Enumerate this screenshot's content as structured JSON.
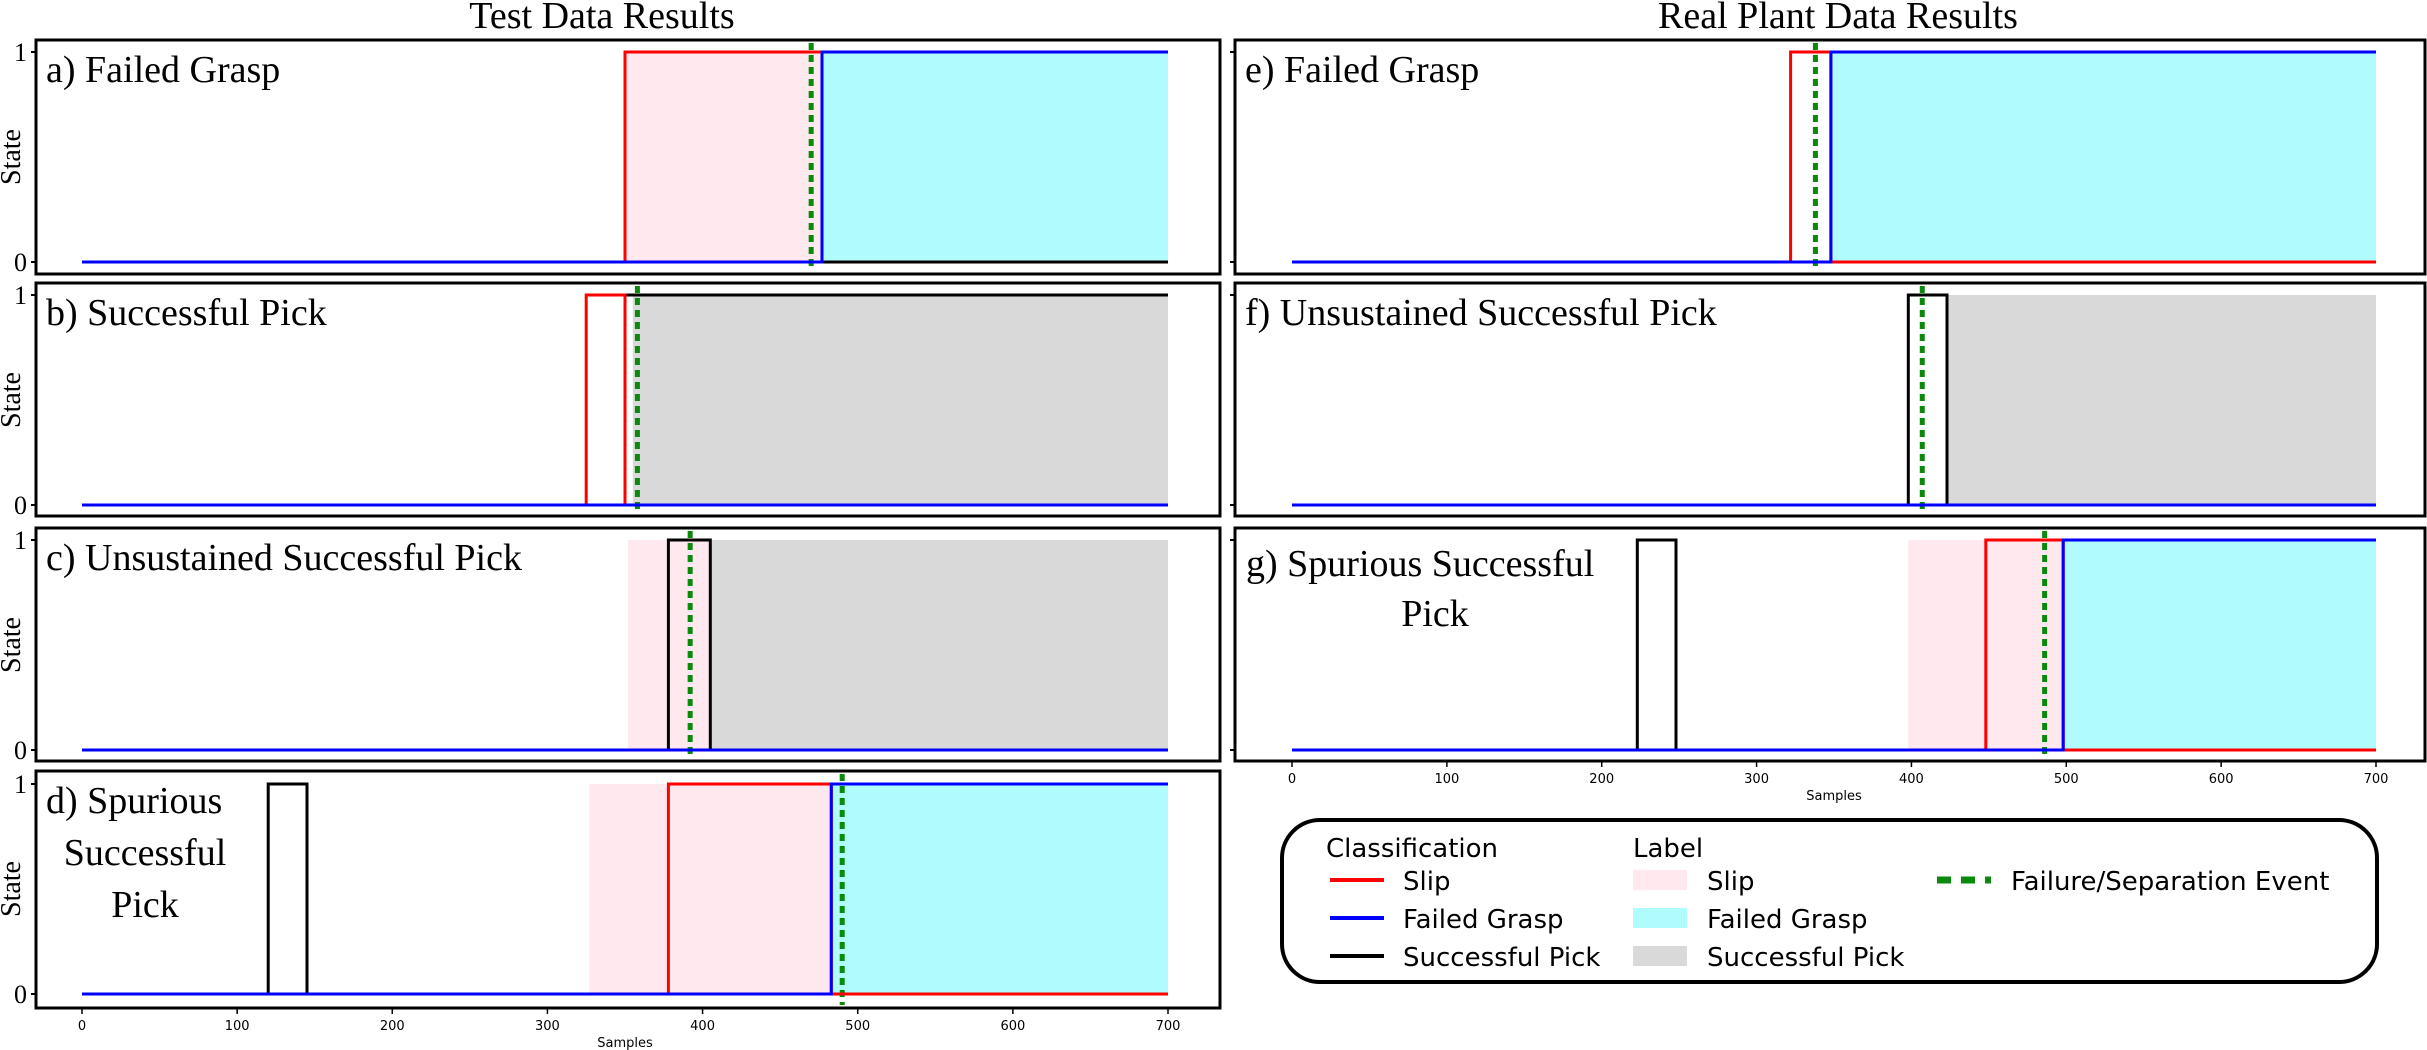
{
  "column_titles": [
    "Test Data Results",
    "Real Plant Data Results"
  ],
  "colors": {
    "slip_line": "#ff0000",
    "failed_line": "#0000ff",
    "success_line": "#000000",
    "slip_fill": "#ffe8ee",
    "failed_fill": "#b0fcfc",
    "success_fill": "#d9d9d9",
    "event": "#0a8a0a"
  },
  "legend": {
    "classification_title": "Classification",
    "label_title": "Label",
    "classification_items": [
      "Slip",
      "Failed Grasp",
      "Successful Pick"
    ],
    "label_items": [
      "Slip",
      "Failed Grasp",
      "Successful Pick"
    ],
    "event_item": "Failure/Separation Event"
  },
  "chart_data": [
    {
      "type": "line",
      "panel": "a",
      "label_lines": [
        "a) Failed Grasp"
      ],
      "ylabel": "State",
      "yticks": [
        0,
        1
      ],
      "xlim": [
        0,
        700
      ],
      "slip": [
        [
          0,
          0
        ],
        [
          350,
          0
        ],
        [
          350,
          1
        ],
        [
          700,
          1
        ]
      ],
      "failed": [
        [
          0,
          0
        ],
        [
          477,
          0
        ],
        [
          477,
          1
        ],
        [
          700,
          1
        ]
      ],
      "success": [
        [
          0,
          0
        ],
        [
          700,
          0
        ]
      ],
      "regions": [
        {
          "class": "slip",
          "from": 350,
          "to": 477
        },
        {
          "class": "failed",
          "from": 477,
          "to": 700
        }
      ],
      "event": 470
    },
    {
      "type": "line",
      "panel": "b",
      "label_lines": [
        "b) Successful Pick"
      ],
      "ylabel": "State",
      "yticks": [
        0,
        1
      ],
      "xlim": [
        0,
        700
      ],
      "slip": [
        [
          0,
          0
        ],
        [
          325,
          0
        ],
        [
          325,
          1
        ],
        [
          350,
          1
        ],
        [
          350,
          0
        ],
        [
          700,
          0
        ]
      ],
      "failed": [
        [
          0,
          0
        ],
        [
          700,
          0
        ]
      ],
      "success": [
        [
          0,
          0
        ],
        [
          350,
          0
        ],
        [
          350,
          1
        ],
        [
          700,
          1
        ]
      ],
      "regions": [
        {
          "class": "success",
          "from": 355,
          "to": 700
        }
      ],
      "event": 358
    },
    {
      "type": "line",
      "panel": "c",
      "label_lines": [
        "c) Unsustained Successful Pick"
      ],
      "ylabel": "State",
      "yticks": [
        0,
        1
      ],
      "xlim": [
        0,
        700
      ],
      "slip": [
        [
          0,
          0
        ],
        [
          700,
          0
        ]
      ],
      "failed": [
        [
          0,
          0
        ],
        [
          700,
          0
        ]
      ],
      "success": [
        [
          0,
          0
        ],
        [
          378,
          0
        ],
        [
          378,
          1
        ],
        [
          405,
          1
        ],
        [
          405,
          0
        ],
        [
          700,
          0
        ]
      ],
      "regions": [
        {
          "class": "slip",
          "from": 352,
          "to": 405
        },
        {
          "class": "success",
          "from": 405,
          "to": 700
        }
      ],
      "event": 392
    },
    {
      "type": "line",
      "panel": "d",
      "label_lines": [
        "d) Spurious",
        "Successful",
        "Pick"
      ],
      "ylabel": "State",
      "yticks": [
        0,
        1
      ],
      "xlim": [
        0,
        700
      ],
      "xlabel": "Samples",
      "xticks": [
        0,
        100,
        200,
        300,
        400,
        500,
        600,
        700
      ],
      "slip": [
        [
          0,
          0
        ],
        [
          378,
          0
        ],
        [
          378,
          1
        ],
        [
          483,
          1
        ],
        [
          483,
          0
        ],
        [
          700,
          0
        ]
      ],
      "failed": [
        [
          0,
          0
        ],
        [
          483,
          0
        ],
        [
          483,
          1
        ],
        [
          700,
          1
        ]
      ],
      "success": [
        [
          0,
          0
        ],
        [
          120,
          0
        ],
        [
          120,
          1
        ],
        [
          145,
          1
        ],
        [
          145,
          0
        ],
        [
          700,
          0
        ]
      ],
      "regions": [
        {
          "class": "slip",
          "from": 327,
          "to": 483
        },
        {
          "class": "failed",
          "from": 483,
          "to": 700
        }
      ],
      "event": 490
    },
    {
      "type": "line",
      "panel": "e",
      "label_lines": [
        "e) Failed Grasp"
      ],
      "ylabel": "",
      "yticks": [],
      "xlim": [
        0,
        700
      ],
      "slip": [
        [
          0,
          0
        ],
        [
          322,
          0
        ],
        [
          322,
          1
        ],
        [
          348,
          1
        ],
        [
          348,
          0
        ],
        [
          700,
          0
        ]
      ],
      "failed": [
        [
          0,
          0
        ],
        [
          348,
          0
        ],
        [
          348,
          1
        ],
        [
          700,
          1
        ]
      ],
      "success": [
        [
          0,
          0
        ],
        [
          700,
          0
        ]
      ],
      "regions": [
        {
          "class": "failed",
          "from": 348,
          "to": 700
        }
      ],
      "event": 338
    },
    {
      "type": "line",
      "panel": "f",
      "label_lines": [
        "f) Unsustained Successful Pick"
      ],
      "ylabel": "",
      "yticks": [],
      "xlim": [
        0,
        700
      ],
      "slip": [
        [
          0,
          0
        ],
        [
          700,
          0
        ]
      ],
      "failed": [
        [
          0,
          0
        ],
        [
          700,
          0
        ]
      ],
      "success": [
        [
          0,
          0
        ],
        [
          398,
          0
        ],
        [
          398,
          1
        ],
        [
          423,
          1
        ],
        [
          423,
          0
        ],
        [
          700,
          0
        ]
      ],
      "regions": [
        {
          "class": "success",
          "from": 423,
          "to": 700
        }
      ],
      "event": 407
    },
    {
      "type": "line",
      "panel": "g",
      "label_lines": [
        "g) Spurious Successful",
        "Pick"
      ],
      "ylabel": "",
      "yticks": [],
      "xlim": [
        0,
        700
      ],
      "xlabel": "Samples",
      "xticks": [
        0,
        100,
        200,
        300,
        400,
        500,
        600,
        700
      ],
      "slip": [
        [
          0,
          0
        ],
        [
          448,
          0
        ],
        [
          448,
          1
        ],
        [
          498,
          1
        ],
        [
          498,
          0
        ],
        [
          700,
          0
        ]
      ],
      "failed": [
        [
          0,
          0
        ],
        [
          498,
          0
        ],
        [
          498,
          1
        ],
        [
          700,
          1
        ]
      ],
      "success": [
        [
          0,
          0
        ],
        [
          223,
          0
        ],
        [
          223,
          1
        ],
        [
          248,
          1
        ],
        [
          248,
          0
        ],
        [
          700,
          0
        ]
      ],
      "regions": [
        {
          "class": "slip",
          "from": 398,
          "to": 498
        },
        {
          "class": "failed",
          "from": 498,
          "to": 700
        }
      ],
      "event": 486
    }
  ]
}
